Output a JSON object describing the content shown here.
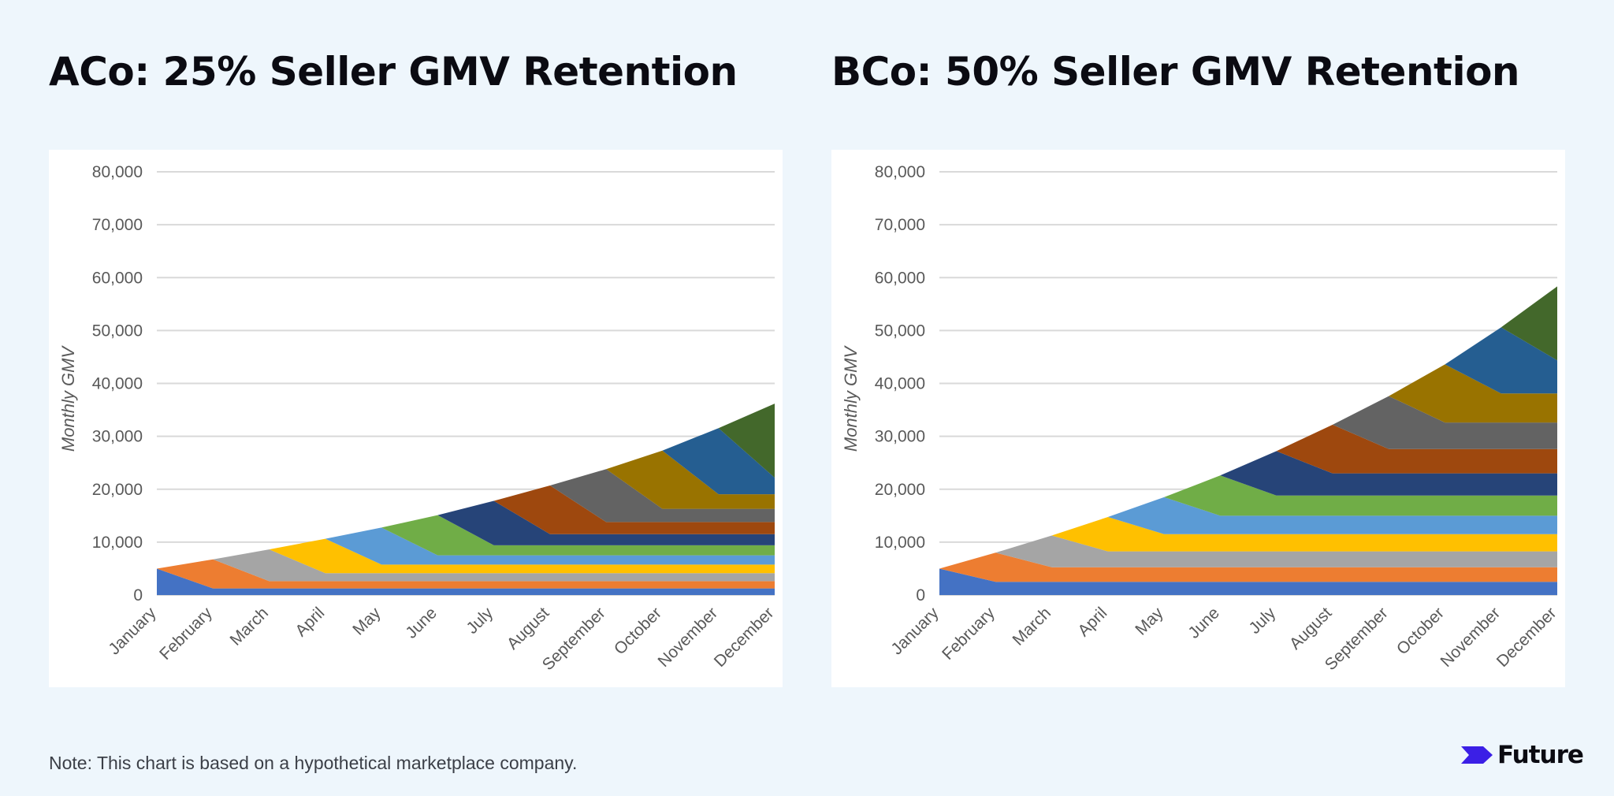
{
  "note": "Note: This chart is based on a hypothetical marketplace company.",
  "brand": {
    "name": "Future",
    "logo_color": "#3b1fe6"
  },
  "colors": {
    "page_background": "#eef6fc",
    "gridline": "#d9d9d9",
    "cohorts": [
      "#4472c4",
      "#ed7d31",
      "#a5a5a5",
      "#ffc000",
      "#5b9bd5",
      "#70ad47",
      "#264478",
      "#9e480e",
      "#636363",
      "#997300",
      "#255e91",
      "#43682b"
    ]
  },
  "chart_data": [
    {
      "type": "area",
      "stacked": true,
      "title": "ACo: 25% Seller GMV Retention",
      "ylabel": "Monthly GMV",
      "xlabel": "",
      "ylim": [
        0,
        80000
      ],
      "yticks": [
        "0",
        "10,000",
        "20,000",
        "30,000",
        "40,000",
        "50,000",
        "60,000",
        "70,000",
        "80,000"
      ],
      "yticks_values": [
        0,
        10000,
        20000,
        30000,
        40000,
        50000,
        60000,
        70000,
        80000
      ],
      "grid": true,
      "legend": "none",
      "categories": [
        "January",
        "February",
        "March",
        "April",
        "May",
        "June",
        "July",
        "August",
        "September",
        "October",
        "November",
        "December"
      ],
      "cohort_new_gmv": [
        5000,
        5500,
        6000,
        6500,
        7000,
        7600,
        8400,
        9200,
        10000,
        11000,
        12500,
        14000
      ],
      "retention": 0.25,
      "series": [
        {
          "values": [
            5000,
            1250,
            1250,
            1250,
            1250,
            1250,
            1250,
            1250,
            1250,
            1250,
            1250,
            1250
          ]
        },
        {
          "values": [
            0,
            5500,
            1375,
            1375,
            1375,
            1375,
            1375,
            1375,
            1375,
            1375,
            1375,
            1375
          ]
        },
        {
          "values": [
            0,
            0,
            6000,
            1500,
            1500,
            1500,
            1500,
            1500,
            1500,
            1500,
            1500,
            1500
          ]
        },
        {
          "values": [
            0,
            0,
            0,
            6500,
            1625,
            1625,
            1625,
            1625,
            1625,
            1625,
            1625,
            1625
          ]
        },
        {
          "values": [
            0,
            0,
            0,
            0,
            7000,
            1750,
            1750,
            1750,
            1750,
            1750,
            1750,
            1750
          ]
        },
        {
          "values": [
            0,
            0,
            0,
            0,
            0,
            7600,
            1900,
            1900,
            1900,
            1900,
            1900,
            1900
          ]
        },
        {
          "values": [
            0,
            0,
            0,
            0,
            0,
            0,
            8400,
            2100,
            2100,
            2100,
            2100,
            2100
          ]
        },
        {
          "values": [
            0,
            0,
            0,
            0,
            0,
            0,
            0,
            9200,
            2300,
            2300,
            2300,
            2300
          ]
        },
        {
          "values": [
            0,
            0,
            0,
            0,
            0,
            0,
            0,
            0,
            10000,
            2500,
            2500,
            2500
          ]
        },
        {
          "values": [
            0,
            0,
            0,
            0,
            0,
            0,
            0,
            0,
            0,
            11000,
            2750,
            2750
          ]
        },
        {
          "values": [
            0,
            0,
            0,
            0,
            0,
            0,
            0,
            0,
            0,
            0,
            12500,
            3125
          ]
        },
        {
          "values": [
            0,
            0,
            0,
            0,
            0,
            0,
            0,
            0,
            0,
            0,
            0,
            14000
          ]
        }
      ]
    },
    {
      "type": "area",
      "stacked": true,
      "title": "BCo: 50% Seller GMV Retention",
      "ylabel": "Monthly GMV",
      "xlabel": "",
      "ylim": [
        0,
        80000
      ],
      "yticks": [
        "0",
        "10,000",
        "20,000",
        "30,000",
        "40,000",
        "50,000",
        "60,000",
        "70,000",
        "80,000"
      ],
      "yticks_values": [
        0,
        10000,
        20000,
        30000,
        40000,
        50000,
        60000,
        70000,
        80000
      ],
      "grid": true,
      "legend": "none",
      "categories": [
        "January",
        "February",
        "March",
        "April",
        "May",
        "June",
        "July",
        "August",
        "September",
        "October",
        "November",
        "December"
      ],
      "cohort_new_gmv": [
        5000,
        5500,
        6000,
        6500,
        7000,
        7600,
        8400,
        9200,
        10000,
        11000,
        12500,
        14000
      ],
      "retention": 0.5,
      "series": [
        {
          "values": [
            5000,
            2500,
            2500,
            2500,
            2500,
            2500,
            2500,
            2500,
            2500,
            2500,
            2500,
            2500
          ]
        },
        {
          "values": [
            0,
            5500,
            2750,
            2750,
            2750,
            2750,
            2750,
            2750,
            2750,
            2750,
            2750,
            2750
          ]
        },
        {
          "values": [
            0,
            0,
            6000,
            3000,
            3000,
            3000,
            3000,
            3000,
            3000,
            3000,
            3000,
            3000
          ]
        },
        {
          "values": [
            0,
            0,
            0,
            6500,
            3250,
            3250,
            3250,
            3250,
            3250,
            3250,
            3250,
            3250
          ]
        },
        {
          "values": [
            0,
            0,
            0,
            0,
            7000,
            3500,
            3500,
            3500,
            3500,
            3500,
            3500,
            3500
          ]
        },
        {
          "values": [
            0,
            0,
            0,
            0,
            0,
            7600,
            3800,
            3800,
            3800,
            3800,
            3800,
            3800
          ]
        },
        {
          "values": [
            0,
            0,
            0,
            0,
            0,
            0,
            8400,
            4200,
            4200,
            4200,
            4200,
            4200
          ]
        },
        {
          "values": [
            0,
            0,
            0,
            0,
            0,
            0,
            0,
            9200,
            4600,
            4600,
            4600,
            4600
          ]
        },
        {
          "values": [
            0,
            0,
            0,
            0,
            0,
            0,
            0,
            0,
            10000,
            5000,
            5000,
            5000
          ]
        },
        {
          "values": [
            0,
            0,
            0,
            0,
            0,
            0,
            0,
            0,
            0,
            11000,
            5500,
            5500
          ]
        },
        {
          "values": [
            0,
            0,
            0,
            0,
            0,
            0,
            0,
            0,
            0,
            0,
            12500,
            6250
          ]
        },
        {
          "values": [
            0,
            0,
            0,
            0,
            0,
            0,
            0,
            0,
            0,
            0,
            0,
            14000
          ]
        }
      ]
    }
  ]
}
